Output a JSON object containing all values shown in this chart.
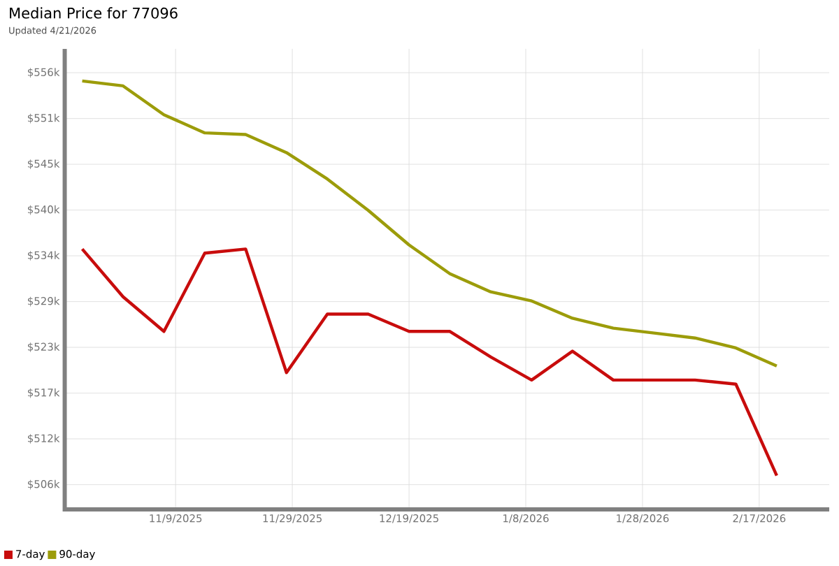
{
  "chart_data": {
    "type": "line",
    "title": "Median Price for 77096",
    "subtitle": "Updated 4/21/2026",
    "x": [
      "2025-10-24",
      "2025-10-31",
      "2025-11-07",
      "2025-11-14",
      "2025-11-21",
      "2025-11-28",
      "2025-12-05",
      "2025-12-12",
      "2025-12-19",
      "2025-12-26",
      "2026-01-02",
      "2026-01-09",
      "2026-01-16",
      "2026-01-23",
      "2026-01-30",
      "2026-02-06",
      "2026-02-13",
      "2026-02-20"
    ],
    "series": [
      {
        "name": "7-day",
        "color": "#c80c0c",
        "values": [
          534.9,
          529.1,
          524.9,
          534.4,
          534.9,
          519.9,
          527.0,
          527.0,
          524.9,
          524.9,
          521.8,
          519.0,
          522.5,
          519.0,
          519.0,
          519.0,
          518.5,
          507.4
        ]
      },
      {
        "name": "90-day",
        "color": "#9c9c0a",
        "values": [
          555.3,
          554.7,
          551.2,
          549.0,
          548.8,
          546.6,
          543.4,
          539.6,
          535.4,
          531.9,
          529.7,
          528.6,
          526.5,
          525.3,
          524.7,
          524.1,
          522.9,
          520.7
        ]
      }
    ],
    "xlim": [
      "2025-10-21",
      "2026-03-01"
    ],
    "xticks": [
      {
        "value": "2025-11-09",
        "label": "11/9/2025"
      },
      {
        "value": "2025-11-29",
        "label": "11/29/2025"
      },
      {
        "value": "2025-12-19",
        "label": "12/19/2025"
      },
      {
        "value": "2026-01-08",
        "label": "1/8/2026"
      },
      {
        "value": "2026-01-28",
        "label": "1/28/2026"
      },
      {
        "value": "2026-02-17",
        "label": "2/17/2026"
      }
    ],
    "ylim": [
      503.3,
      559.2
    ],
    "yticks": [
      {
        "value": 506.3,
        "label": "$506k"
      },
      {
        "value": 511.86,
        "label": "$512k"
      },
      {
        "value": 517.41,
        "label": "$517k"
      },
      {
        "value": 522.97,
        "label": "$523k"
      },
      {
        "value": 528.52,
        "label": "$529k"
      },
      {
        "value": 534.08,
        "label": "$534k"
      },
      {
        "value": 539.63,
        "label": "$540k"
      },
      {
        "value": 545.19,
        "label": "$545k"
      },
      {
        "value": 550.74,
        "label": "$551k"
      },
      {
        "value": 556.3,
        "label": "$556k"
      }
    ],
    "grid": true,
    "legend": "bottom left",
    "marker": "none",
    "line_style": "solid"
  }
}
